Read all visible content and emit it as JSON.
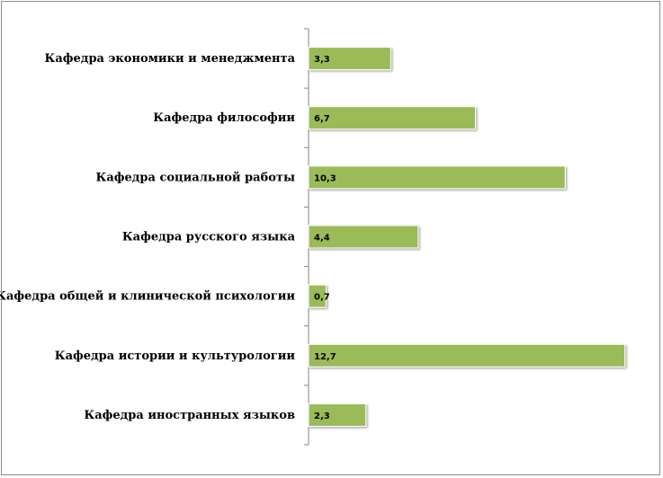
{
  "chart_data": {
    "type": "bar",
    "orientation": "horizontal",
    "categories": [
      "Кафедра экономики и менеджмента",
      "Кафедра философии",
      "Кафедра социальной работы",
      "Кафедра русского языка",
      "Кафедра общей и клинической психологии",
      "Кафедра истории и культурологии",
      "Кафедра иностранных языков"
    ],
    "values": [
      3.3,
      6.7,
      10.3,
      4.4,
      0.7,
      12.7,
      2.3
    ],
    "data_labels": [
      "3,3",
      "6,7",
      "10,3",
      "4,4",
      "0,7",
      "12,7",
      "2,3"
    ],
    "bar_color": "#9bbb59",
    "bar_edge_color": "#ffffff",
    "xlim": [
      0,
      13
    ],
    "x_axis_visible": false,
    "grid": false,
    "legend": "none"
  }
}
